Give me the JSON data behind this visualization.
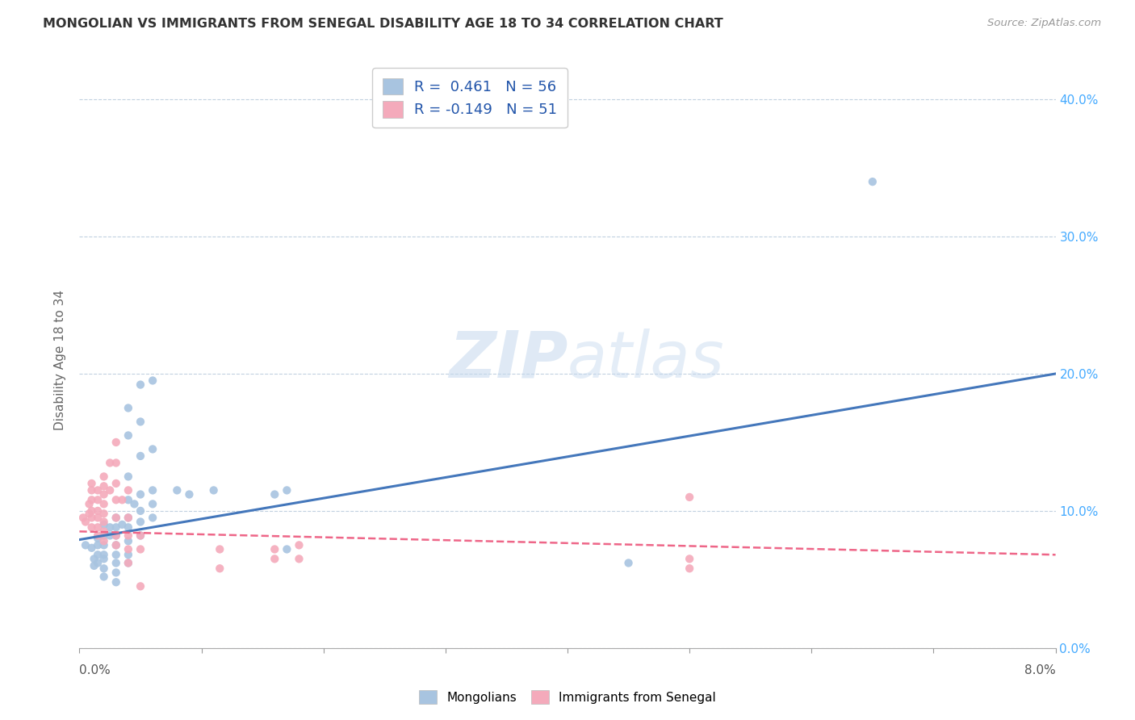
{
  "title": "MONGOLIAN VS IMMIGRANTS FROM SENEGAL DISABILITY AGE 18 TO 34 CORRELATION CHART",
  "source": "Source: ZipAtlas.com",
  "ylabel": "Disability Age 18 to 34",
  "xlim": [
    0.0,
    0.08
  ],
  "ylim": [
    0.0,
    0.42
  ],
  "mongolian_R": 0.461,
  "mongolian_N": 56,
  "senegal_R": -0.149,
  "senegal_N": 51,
  "blue_color": "#A8C4E0",
  "pink_color": "#F4AABB",
  "blue_line_color": "#4477BB",
  "pink_line_color": "#EE6688",
  "watermark_color": "#C8DDF0",
  "blue_line_y0": 0.079,
  "blue_line_y1": 0.2,
  "pink_line_y0": 0.085,
  "pink_line_y1": 0.068,
  "mongolian_points": [
    [
      0.0005,
      0.075
    ],
    [
      0.001,
      0.073
    ],
    [
      0.0012,
      0.065
    ],
    [
      0.0012,
      0.06
    ],
    [
      0.0015,
      0.08
    ],
    [
      0.0015,
      0.075
    ],
    [
      0.0015,
      0.068
    ],
    [
      0.0015,
      0.062
    ],
    [
      0.002,
      0.09
    ],
    [
      0.002,
      0.082
    ],
    [
      0.002,
      0.075
    ],
    [
      0.002,
      0.068
    ],
    [
      0.002,
      0.065
    ],
    [
      0.002,
      0.058
    ],
    [
      0.002,
      0.052
    ],
    [
      0.0025,
      0.088
    ],
    [
      0.0025,
      0.082
    ],
    [
      0.003,
      0.095
    ],
    [
      0.003,
      0.088
    ],
    [
      0.003,
      0.082
    ],
    [
      0.003,
      0.075
    ],
    [
      0.003,
      0.068
    ],
    [
      0.003,
      0.062
    ],
    [
      0.003,
      0.055
    ],
    [
      0.003,
      0.048
    ],
    [
      0.0035,
      0.09
    ],
    [
      0.004,
      0.175
    ],
    [
      0.004,
      0.155
    ],
    [
      0.004,
      0.125
    ],
    [
      0.004,
      0.108
    ],
    [
      0.004,
      0.095
    ],
    [
      0.004,
      0.088
    ],
    [
      0.004,
      0.078
    ],
    [
      0.004,
      0.068
    ],
    [
      0.004,
      0.062
    ],
    [
      0.0045,
      0.105
    ],
    [
      0.005,
      0.192
    ],
    [
      0.005,
      0.165
    ],
    [
      0.005,
      0.14
    ],
    [
      0.005,
      0.112
    ],
    [
      0.005,
      0.1
    ],
    [
      0.005,
      0.092
    ],
    [
      0.005,
      0.082
    ],
    [
      0.006,
      0.195
    ],
    [
      0.006,
      0.145
    ],
    [
      0.006,
      0.115
    ],
    [
      0.006,
      0.105
    ],
    [
      0.006,
      0.095
    ],
    [
      0.008,
      0.115
    ],
    [
      0.009,
      0.112
    ],
    [
      0.011,
      0.115
    ],
    [
      0.016,
      0.112
    ],
    [
      0.017,
      0.115
    ],
    [
      0.017,
      0.072
    ],
    [
      0.045,
      0.062
    ],
    [
      0.065,
      0.34
    ]
  ],
  "senegal_points": [
    [
      0.0003,
      0.095
    ],
    [
      0.0005,
      0.092
    ],
    [
      0.0008,
      0.105
    ],
    [
      0.0008,
      0.098
    ],
    [
      0.001,
      0.12
    ],
    [
      0.001,
      0.115
    ],
    [
      0.001,
      0.108
    ],
    [
      0.001,
      0.1
    ],
    [
      0.001,
      0.095
    ],
    [
      0.001,
      0.088
    ],
    [
      0.0015,
      0.115
    ],
    [
      0.0015,
      0.108
    ],
    [
      0.0015,
      0.1
    ],
    [
      0.0015,
      0.095
    ],
    [
      0.0015,
      0.088
    ],
    [
      0.0015,
      0.082
    ],
    [
      0.002,
      0.125
    ],
    [
      0.002,
      0.118
    ],
    [
      0.002,
      0.112
    ],
    [
      0.002,
      0.105
    ],
    [
      0.002,
      0.098
    ],
    [
      0.002,
      0.092
    ],
    [
      0.002,
      0.085
    ],
    [
      0.002,
      0.078
    ],
    [
      0.0025,
      0.135
    ],
    [
      0.0025,
      0.115
    ],
    [
      0.003,
      0.15
    ],
    [
      0.003,
      0.135
    ],
    [
      0.003,
      0.12
    ],
    [
      0.003,
      0.108
    ],
    [
      0.003,
      0.095
    ],
    [
      0.003,
      0.082
    ],
    [
      0.003,
      0.075
    ],
    [
      0.0035,
      0.108
    ],
    [
      0.004,
      0.115
    ],
    [
      0.004,
      0.095
    ],
    [
      0.004,
      0.082
    ],
    [
      0.004,
      0.072
    ],
    [
      0.004,
      0.062
    ],
    [
      0.005,
      0.082
    ],
    [
      0.005,
      0.072
    ],
    [
      0.005,
      0.045
    ],
    [
      0.0115,
      0.072
    ],
    [
      0.0115,
      0.058
    ],
    [
      0.016,
      0.072
    ],
    [
      0.016,
      0.065
    ],
    [
      0.018,
      0.075
    ],
    [
      0.018,
      0.065
    ],
    [
      0.05,
      0.11
    ],
    [
      0.05,
      0.065
    ],
    [
      0.05,
      0.058
    ]
  ]
}
